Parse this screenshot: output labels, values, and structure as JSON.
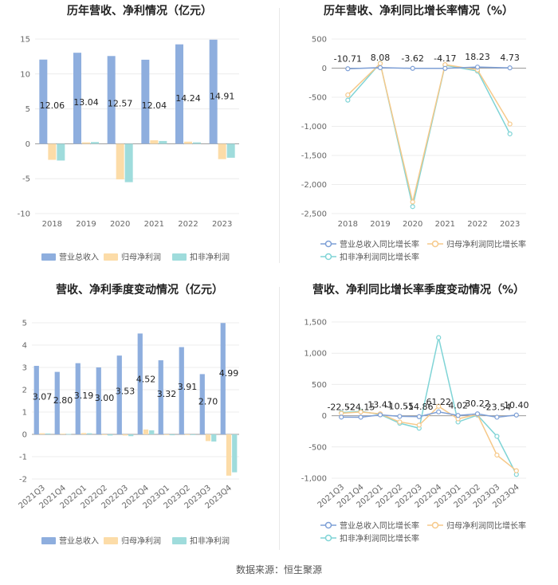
{
  "footer": "数据来源：恒生聚源",
  "legend": {
    "bars": [
      "营业总收入",
      "归母净利润",
      "扣非净利润"
    ],
    "lines": [
      "营业总收入同比增长率",
      "归母净利润同比增长率",
      "扣非净利润同比增长率"
    ]
  },
  "colors": {
    "revenue": "#8eaede",
    "netProfit": "#fcdca8",
    "deductProfit": "#9fdcdc"
  },
  "chart_data": [
    {
      "type": "bar",
      "title": "历年营收、净利情况（亿元）",
      "categories": [
        "2018",
        "2019",
        "2020",
        "2021",
        "2022",
        "2023"
      ],
      "ylim": [
        -10,
        15
      ],
      "yticks": [
        15,
        10,
        5,
        0,
        -5,
        -10
      ],
      "series": [
        {
          "name": "营业总收入",
          "values": [
            12.06,
            13.04,
            12.57,
            12.04,
            14.24,
            14.91
          ]
        },
        {
          "name": "归母净利润",
          "values": [
            -2.3,
            0.2,
            -5.1,
            0.5,
            0.3,
            -2.2
          ]
        },
        {
          "name": "扣非净利润",
          "values": [
            -2.4,
            0.25,
            -5.5,
            0.4,
            0.2,
            -2.0
          ]
        }
      ],
      "data_labels": [
        "12.06",
        "13.04",
        "12.57",
        "12.04",
        "14.24",
        "14.91"
      ]
    },
    {
      "type": "line",
      "title": "历年营收、净利同比增长率情况（%）",
      "categories": [
        "2018",
        "2019",
        "2020",
        "2021",
        "2022",
        "2023"
      ],
      "ylim": [
        -2500,
        500
      ],
      "yticks": [
        500,
        0,
        -500,
        -1000,
        -1500,
        -2000,
        -2500
      ],
      "ytick_labels": [
        "500",
        "0",
        "-500",
        "-1,000",
        "-1,500",
        "-2,000",
        "-2,500"
      ],
      "series": [
        {
          "name": "营业总收入同比增长率",
          "values": [
            -10.71,
            8.08,
            -3.62,
            -4.17,
            18.23,
            4.73
          ]
        },
        {
          "name": "归母净利润同比增长率",
          "values": [
            -460,
            80,
            -2300,
            60,
            -30,
            -960
          ]
        },
        {
          "name": "扣非净利润同比增长率",
          "values": [
            -550,
            85,
            -2380,
            50,
            -50,
            -1130
          ]
        }
      ],
      "data_labels": [
        "-10.71",
        "8.08",
        "-3.62",
        "-4.17",
        "18.23",
        "4.73"
      ]
    },
    {
      "type": "bar",
      "title": "营收、净利季度变动情况（亿元）",
      "categories": [
        "2021Q3",
        "2021Q4",
        "2022Q1",
        "2022Q2",
        "2022Q3",
        "2022Q4",
        "2023Q1",
        "2023Q2",
        "2023Q3",
        "2023Q4"
      ],
      "ylim": [
        -2,
        5
      ],
      "yticks": [
        5,
        4,
        3,
        2,
        1,
        0,
        -1,
        -2
      ],
      "series": [
        {
          "name": "营业总收入",
          "values": [
            3.07,
            2.8,
            3.19,
            3.0,
            3.53,
            4.52,
            3.32,
            3.91,
            2.7,
            4.99
          ]
        },
        {
          "name": "归母净利润",
          "values": [
            0.05,
            0.03,
            0.06,
            -0.03,
            -0.05,
            0.22,
            -0.03,
            -0.02,
            -0.3,
            -1.85
          ]
        },
        {
          "name": "扣非净利润",
          "values": [
            0.04,
            0.02,
            0.05,
            -0.05,
            -0.08,
            0.18,
            -0.04,
            -0.03,
            -0.32,
            -1.7
          ]
        }
      ],
      "data_labels": [
        "3.07",
        "2.80",
        "3.19",
        "3.00",
        "3.53",
        "4.52",
        "3.32",
        "3.91",
        "2.70",
        "4.99"
      ]
    },
    {
      "type": "line",
      "title": "营收、净利同比增长率季度变动情况（%）",
      "categories": [
        "2021Q3",
        "2021Q4",
        "2022Q1",
        "2022Q2",
        "2022Q3",
        "2022Q4",
        "2023Q1",
        "2023Q2",
        "2023Q3",
        "2023Q4"
      ],
      "ylim": [
        -1000,
        1500
      ],
      "yticks": [
        1500,
        1000,
        500,
        0,
        -500,
        -1000
      ],
      "ytick_labels": [
        "1,500",
        "1,000",
        "500",
        "0",
        "-500",
        "-1,000"
      ],
      "series": [
        {
          "name": "营业总收入同比增长率",
          "values": [
            -22.52,
            -24.15,
            13.41,
            -10.55,
            -14.86,
            61.22,
            4.02,
            30.22,
            -23.54,
            10.4
          ]
        },
        {
          "name": "归母净利润同比增长率",
          "values": [
            40,
            60,
            30,
            -100,
            -150,
            150,
            -50,
            20,
            -630,
            -880
          ]
        },
        {
          "name": "扣非净利润同比增长率",
          "values": [
            50,
            70,
            20,
            -120,
            -200,
            1250,
            -100,
            10,
            -330,
            -940
          ]
        }
      ],
      "data_labels": [
        "-22.52",
        "-24.15",
        "13.41",
        "-10.55",
        "-14.86",
        "61.22",
        "4.02",
        "30.22",
        "-23.54",
        "10.40"
      ]
    }
  ]
}
